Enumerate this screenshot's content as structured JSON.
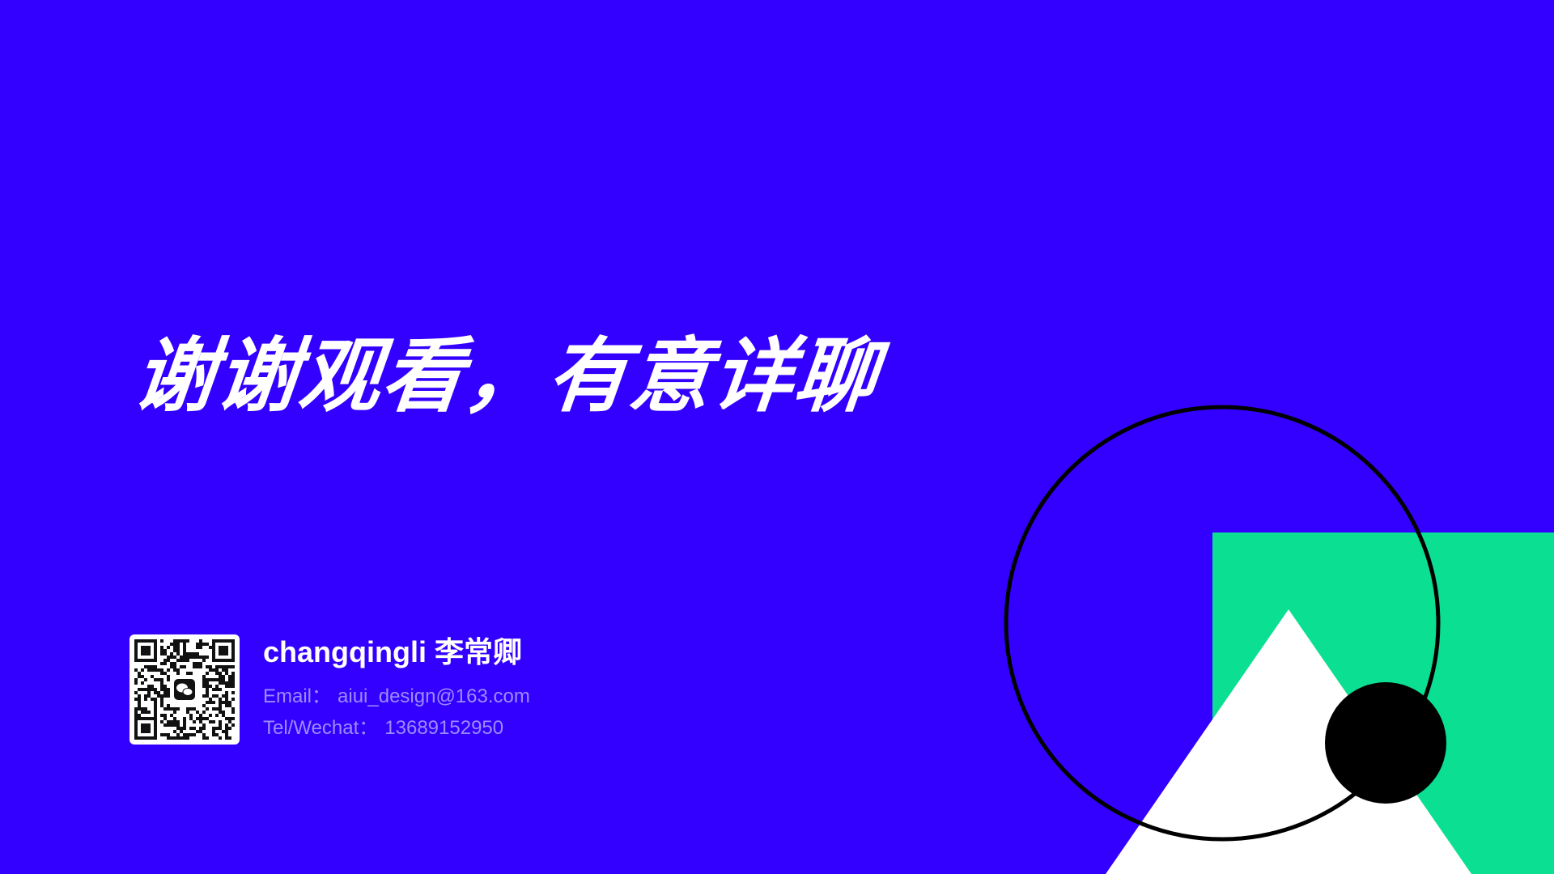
{
  "slide": {
    "headline": "谢谢观看，有意详聊",
    "contact": {
      "name": "changqingli 李常卿",
      "email_label": "Email：",
      "email": "aiui_design@163.com",
      "tel_label": "Tel/Wechat：",
      "tel": "13689152950",
      "qr_icon": "qr-code-wechat-icon"
    }
  },
  "colors": {
    "background": "#3300ff",
    "accent_green": "#0adf92",
    "white": "#ffffff",
    "black": "#000000",
    "muted_text": "#9b8cff"
  }
}
